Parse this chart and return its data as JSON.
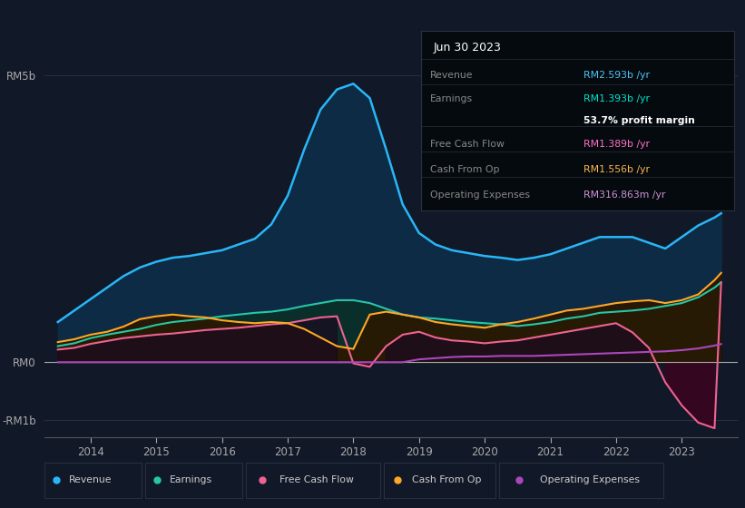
{
  "bg_color": "#111827",
  "plot_bg_color": "#111827",
  "title": "Jun 30 2023",
  "info_rows": [
    {
      "label": "Revenue",
      "value": "RM2.593b /yr",
      "value_color": "#4fc3f7"
    },
    {
      "label": "Earnings",
      "value": "RM1.393b /yr",
      "value_color": "#00e5cc"
    },
    {
      "label": "",
      "value": "53.7% profit margin",
      "value_color": "#ffffff"
    },
    {
      "label": "Free Cash Flow",
      "value": "RM1.389b /yr",
      "value_color": "#ff6ec7"
    },
    {
      "label": "Cash From Op",
      "value": "RM1.556b /yr",
      "value_color": "#ffb74d"
    },
    {
      "label": "Operating Expenses",
      "value": "RM316.863m /yr",
      "value_color": "#ce93d8"
    }
  ],
  "ylim": [
    -1.3,
    5.6
  ],
  "xlim": [
    2013.3,
    2023.85
  ],
  "yticks_labels": [
    "RM5b",
    "RM0",
    "-RM1b"
  ],
  "yticks_values": [
    5.0,
    0.0,
    -1.0
  ],
  "xticks": [
    2014,
    2015,
    2016,
    2017,
    2018,
    2019,
    2020,
    2021,
    2022,
    2023
  ],
  "revenue_color": "#29b6f6",
  "earnings_color": "#26c6a6",
  "fcf_color": "#f06292",
  "cashfromop_color": "#ffa726",
  "opex_color": "#ab47bc",
  "revenue_fill_color": "#0d2b45",
  "earnings_fill_color": "#0a2e2a",
  "legend_items": [
    {
      "label": "Revenue",
      "color": "#29b6f6"
    },
    {
      "label": "Earnings",
      "color": "#26c6a6"
    },
    {
      "label": "Free Cash Flow",
      "color": "#f06292"
    },
    {
      "label": "Cash From Op",
      "color": "#ffa726"
    },
    {
      "label": "Operating Expenses",
      "color": "#ab47bc"
    }
  ],
  "years": [
    2013.5,
    2013.75,
    2014.0,
    2014.25,
    2014.5,
    2014.75,
    2015.0,
    2015.25,
    2015.5,
    2015.75,
    2016.0,
    2016.25,
    2016.5,
    2016.75,
    2017.0,
    2017.25,
    2017.5,
    2017.75,
    2018.0,
    2018.25,
    2018.5,
    2018.75,
    2019.0,
    2019.25,
    2019.5,
    2019.75,
    2020.0,
    2020.25,
    2020.5,
    2020.75,
    2021.0,
    2021.25,
    2021.5,
    2021.75,
    2022.0,
    2022.25,
    2022.5,
    2022.75,
    2023.0,
    2023.25,
    2023.5,
    2023.6
  ],
  "revenue": [
    0.7,
    0.9,
    1.1,
    1.3,
    1.5,
    1.65,
    1.75,
    1.82,
    1.85,
    1.9,
    1.95,
    2.05,
    2.15,
    2.4,
    2.9,
    3.7,
    4.4,
    4.75,
    4.85,
    4.6,
    3.7,
    2.75,
    2.25,
    2.05,
    1.95,
    1.9,
    1.85,
    1.82,
    1.78,
    1.82,
    1.88,
    1.98,
    2.08,
    2.18,
    2.18,
    2.18,
    2.08,
    1.98,
    2.18,
    2.38,
    2.52,
    2.593
  ],
  "earnings": [
    0.28,
    0.33,
    0.42,
    0.48,
    0.53,
    0.58,
    0.65,
    0.7,
    0.73,
    0.76,
    0.8,
    0.83,
    0.86,
    0.88,
    0.92,
    0.98,
    1.03,
    1.08,
    1.08,
    1.03,
    0.93,
    0.83,
    0.78,
    0.76,
    0.73,
    0.7,
    0.68,
    0.66,
    0.63,
    0.66,
    0.7,
    0.76,
    0.8,
    0.86,
    0.88,
    0.9,
    0.93,
    0.98,
    1.03,
    1.13,
    1.3,
    1.393
  ],
  "free_cash_flow": [
    0.22,
    0.25,
    0.32,
    0.37,
    0.42,
    0.45,
    0.48,
    0.5,
    0.53,
    0.56,
    0.58,
    0.6,
    0.63,
    0.66,
    0.68,
    0.73,
    0.78,
    0.8,
    -0.02,
    -0.08,
    0.28,
    0.48,
    0.53,
    0.43,
    0.38,
    0.36,
    0.33,
    0.36,
    0.38,
    0.43,
    0.48,
    0.53,
    0.58,
    0.63,
    0.68,
    0.52,
    0.25,
    -0.35,
    -0.75,
    -1.05,
    -1.15,
    1.389
  ],
  "cash_from_op": [
    0.35,
    0.4,
    0.48,
    0.53,
    0.62,
    0.75,
    0.8,
    0.83,
    0.8,
    0.78,
    0.73,
    0.7,
    0.68,
    0.7,
    0.68,
    0.58,
    0.43,
    0.28,
    0.23,
    0.83,
    0.88,
    0.83,
    0.78,
    0.7,
    0.66,
    0.63,
    0.6,
    0.66,
    0.7,
    0.76,
    0.83,
    0.9,
    0.93,
    0.98,
    1.03,
    1.06,
    1.08,
    1.03,
    1.08,
    1.18,
    1.43,
    1.556
  ],
  "op_expenses": [
    0.0,
    0.0,
    0.0,
    0.0,
    0.0,
    0.0,
    0.0,
    0.0,
    0.0,
    0.0,
    0.0,
    0.0,
    0.0,
    0.0,
    0.0,
    0.0,
    0.0,
    0.0,
    0.0,
    0.0,
    0.0,
    0.0,
    0.05,
    0.07,
    0.09,
    0.1,
    0.1,
    0.11,
    0.11,
    0.11,
    0.12,
    0.13,
    0.14,
    0.15,
    0.16,
    0.17,
    0.18,
    0.19,
    0.21,
    0.24,
    0.29,
    0.317
  ]
}
